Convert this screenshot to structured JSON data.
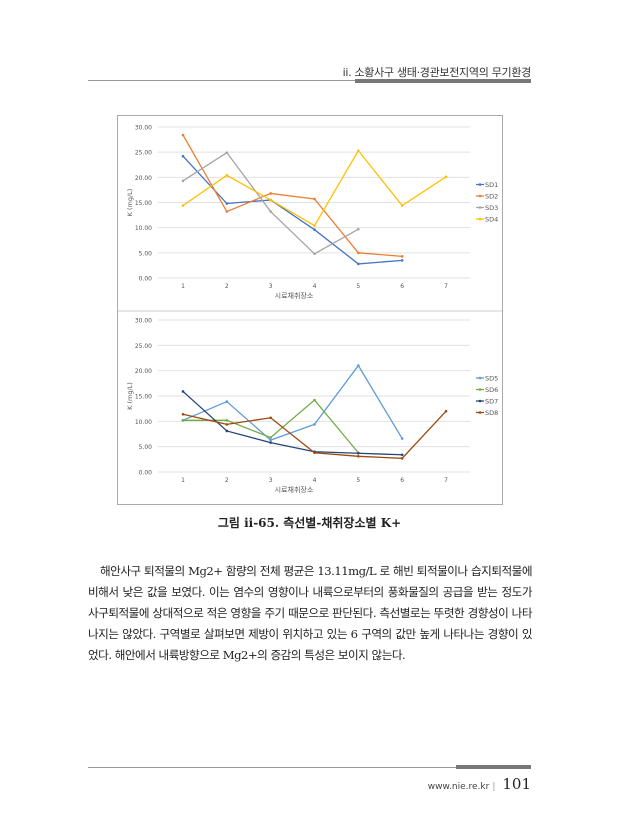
{
  "header": {
    "title": "ii. 소황사구 생태·경관보전지역의 무기환경"
  },
  "chart_data": [
    {
      "type": "line",
      "title": "",
      "xlabel": "시료채취장소",
      "ylabel": "K (mg/L)",
      "ylim": [
        0,
        30
      ],
      "yticks": [
        "0.00",
        "5.00",
        "10.00",
        "15.00",
        "20.00",
        "25.00",
        "30.00"
      ],
      "categories": [
        "1",
        "2",
        "3",
        "4",
        "5",
        "6",
        "7"
      ],
      "grid": true,
      "legend": "right",
      "series": [
        {
          "name": "SD1",
          "color": "#4472C4",
          "values": [
            24.2,
            14.8,
            15.5,
            9.6,
            2.8,
            3.5,
            null
          ]
        },
        {
          "name": "SD2",
          "color": "#ED7D31",
          "values": [
            28.4,
            13.2,
            16.8,
            15.7,
            5.0,
            4.3,
            null
          ]
        },
        {
          "name": "SD3",
          "color": "#A5A5A5",
          "values": [
            19.3,
            24.9,
            13.2,
            4.8,
            9.7,
            null,
            null
          ]
        },
        {
          "name": "SD4",
          "color": "#FFC000",
          "values": [
            14.4,
            20.4,
            15.5,
            10.4,
            25.3,
            14.4,
            20.1
          ]
        }
      ]
    },
    {
      "type": "line",
      "title": "",
      "xlabel": "시료채취장소",
      "ylabel": "K (mg/L)",
      "ylim": [
        0,
        30
      ],
      "yticks": [
        "0.00",
        "5.00",
        "10.00",
        "15.00",
        "20.00",
        "25.00",
        "30.00"
      ],
      "categories": [
        "1",
        "2",
        "3",
        "4",
        "5",
        "6",
        "7"
      ],
      "grid": true,
      "legend": "right",
      "series": [
        {
          "name": "SD5",
          "color": "#5B9BD5",
          "values": [
            10.2,
            13.9,
            6.3,
            9.4,
            21.0,
            6.6,
            null
          ]
        },
        {
          "name": "SD6",
          "color": "#70AD47",
          "values": [
            10.2,
            10.2,
            6.8,
            14.2,
            3.8,
            null,
            null
          ]
        },
        {
          "name": "SD7",
          "color": "#264478",
          "values": [
            15.9,
            8.1,
            5.8,
            4.0,
            3.7,
            3.4,
            null
          ]
        },
        {
          "name": "SD8",
          "color": "#9E480E",
          "values": [
            11.4,
            9.4,
            10.7,
            3.8,
            3.1,
            2.7,
            12.0
          ]
        }
      ]
    }
  ],
  "caption": "그림 ii-65. 측선별-채취장소별 K+",
  "body": "해안사구 퇴적물의 Mg2+ 함량의 전체 평균은 13.11mg/L 로 해빈 퇴적물이나 습지퇴적물에 비해서 낮은 값을 보였다. 이는 염수의 영향이나 내륙으로부터의 풍화물질의 공급을 받는 정도가 사구퇴적물에 상대적으로 적은 영향을 주기 때문으로 판단된다. 측선별로는 뚜렷한 경향성이 나타나지는 않았다. 구역별로 살펴보면 제방이 위치하고 있는 6 구역의 값만 높게 나타나는 경향이 있었다. 해안에서 내륙방향으로 Mg2+의 증감의 특성은 보이지 않는다.",
  "footer": {
    "url": "www.nie.re.kr",
    "page": "101"
  }
}
